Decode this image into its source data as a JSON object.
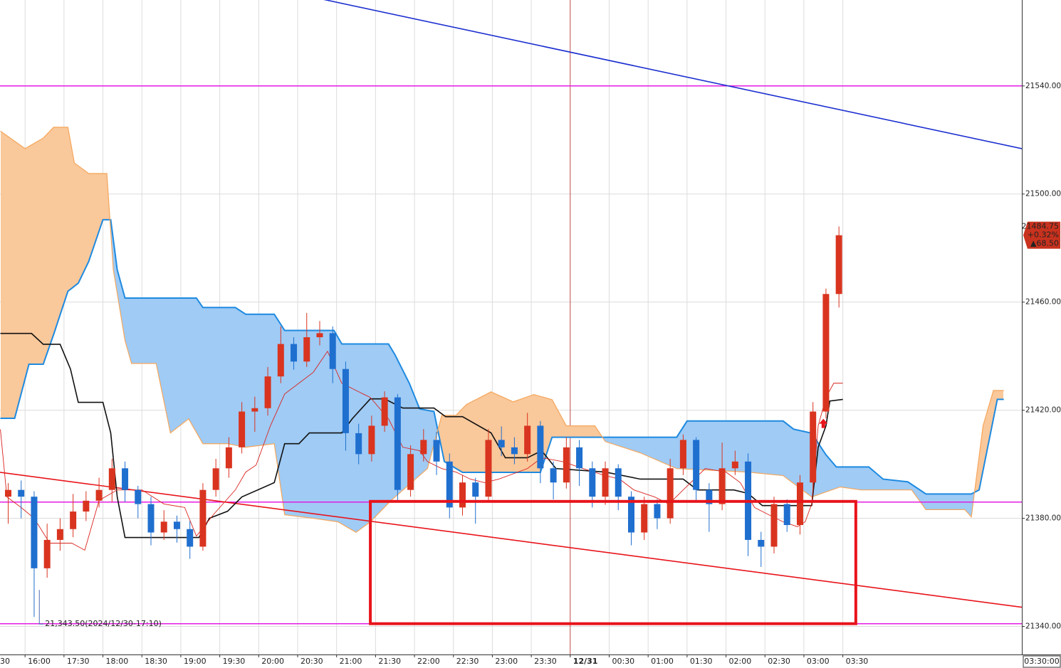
{
  "chart_data": {
    "type": "candlestick",
    "x": [
      -2,
      -1,
      0,
      1,
      2,
      3,
      4,
      5,
      6,
      7,
      8,
      9,
      10,
      11,
      12,
      13,
      14,
      15,
      16,
      17,
      18,
      19,
      20,
      21,
      22,
      23,
      24,
      25,
      26,
      27,
      28,
      29,
      30,
      31,
      32,
      33,
      34,
      35,
      36,
      37,
      38,
      39,
      40,
      41,
      42,
      43,
      44,
      45,
      46,
      47,
      48,
      49,
      50,
      51,
      52,
      53,
      54,
      55,
      56,
      57,
      58,
      59,
      60,
      61,
      62
    ],
    "open": [
      21388,
      21390.5,
      21388,
      21361.5,
      21372,
      21376,
      21382.5,
      21386.5,
      21390.5,
      21398.5,
      21390.5,
      21385.25,
      21374.75,
      21378.75,
      21376,
      21369.5,
      21390.5,
      21398.5,
      21406.25,
      21419.5,
      21420.75,
      21432.5,
      21444.5,
      21438,
      21447,
      21448.5,
      21435.25,
      21411.5,
      21403.75,
      21414.25,
      21424.75,
      21390.5,
      21403.75,
      21409,
      21401,
      21384,
      21393.25,
      21388,
      21409,
      21406.25,
      21403.75,
      21414.25,
      21398.5,
      21393.25,
      21406.25,
      21398.5,
      21388,
      21398.5,
      21388,
      21374.75,
      21385.25,
      21380,
      21398.5,
      21409,
      21390.5,
      21385.25,
      21398.5,
      21401,
      21372,
      21369.5,
      21385.25,
      21377.5,
      21393.25,
      21419.5,
      21463
    ],
    "high": [
      21393,
      21394,
      21390,
      21378,
      21380,
      21389,
      21390,
      21395,
      21402,
      21401,
      21392,
      21388,
      21383,
      21381,
      21379,
      21393,
      21402,
      21410,
      21423,
      21425,
      21436,
      21451,
      21447,
      21456,
      21453,
      21451,
      21438,
      21415,
      21418,
      21427,
      21426,
      21407,
      21413,
      21412,
      21404,
      21396,
      21395,
      21413,
      21414,
      21410,
      21419,
      21416,
      21401,
      21410,
      21409,
      21401,
      21401,
      21400,
      21390,
      21388,
      21387,
      21402,
      21411,
      21410,
      21393,
      21408,
      21405,
      21404,
      21375,
      21388,
      21387,
      21396,
      21423,
      21465,
      21488
    ],
    "low": [
      21378,
      21380,
      21343.5,
      21358,
      21368,
      21373,
      21379,
      21384,
      21386,
      21386,
      21380,
      21370,
      21372,
      21371,
      21365,
      21368,
      21388,
      21395,
      21404,
      21412,
      21418,
      21430,
      21435,
      21436,
      21444,
      21430,
      21405,
      21400,
      21401,
      21412,
      21386,
      21388,
      21401,
      21396,
      21380,
      21381,
      21378,
      21386,
      21403,
      21400,
      21401,
      21393,
      21387,
      21391,
      21392,
      21384,
      21385,
      21383,
      21370,
      21372,
      21376,
      21378,
      21396,
      21386,
      21375,
      21383,
      21396,
      21366,
      21362,
      21367,
      21375,
      21374,
      21390,
      21417,
      21458
    ],
    "close": [
      21390.5,
      21388,
      21361.5,
      21372,
      21376,
      21382.5,
      21386.5,
      21390.5,
      21398.5,
      21390.5,
      21385.25,
      21374.75,
      21378.75,
      21376,
      21369.5,
      21390.5,
      21398.5,
      21406.25,
      21419.5,
      21420.75,
      21432.5,
      21444.5,
      21438,
      21447,
      21448.5,
      21435.25,
      21411.5,
      21403.75,
      21414.25,
      21424.75,
      21390.5,
      21403.75,
      21409,
      21401,
      21384,
      21393.25,
      21388,
      21409,
      21406.25,
      21403.75,
      21414.25,
      21398.5,
      21393.25,
      21406.25,
      21398.5,
      21388,
      21398.5,
      21388,
      21374.75,
      21385.25,
      21380,
      21398.5,
      21409,
      21390.5,
      21385.25,
      21398.5,
      21401,
      21372,
      21369.5,
      21385.25,
      21377.5,
      21393.25,
      21419.5,
      21463,
      21484.75
    ],
    "up_color": "#d9341f",
    "down_color": "#1f6fcf",
    "xlim": [
      -2.63,
      76.09
    ],
    "ylim": [
      21329.6,
      21571.8
    ],
    "xticks": [
      {
        "value": -3.7,
        "label": "30"
      },
      {
        "value": -0.7,
        "label": "16:00"
      },
      {
        "value": 2.3,
        "label": "17:30"
      },
      {
        "value": 5.3,
        "label": "18:00"
      },
      {
        "value": 8.3,
        "label": "18:30"
      },
      {
        "value": 11.3,
        "label": "19:00"
      },
      {
        "value": 14.3,
        "label": "19:30"
      },
      {
        "value": 17.3,
        "label": "20:00"
      },
      {
        "value": 20.3,
        "label": "20:30"
      },
      {
        "value": 23.3,
        "label": "21:00"
      },
      {
        "value": 26.3,
        "label": "21:30"
      },
      {
        "value": 29.3,
        "label": "22:00"
      },
      {
        "value": 32.3,
        "label": "22:30"
      },
      {
        "value": 35.3,
        "label": "23:00"
      },
      {
        "value": 38.3,
        "label": "23:30"
      },
      {
        "value": 41.3,
        "label": "12/31"
      },
      {
        "value": 44.3,
        "label": "00:30"
      },
      {
        "value": 47.3,
        "label": "01:00"
      },
      {
        "value": 50.3,
        "label": "01:30"
      },
      {
        "value": 53.3,
        "label": "02:00"
      },
      {
        "value": 56.3,
        "label": "02:30"
      },
      {
        "value": 59.3,
        "label": "03:00"
      },
      {
        "value": 62.3,
        "label": "03:30"
      }
    ],
    "yticks": [
      {
        "value": 21340,
        "label": "21340.00"
      },
      {
        "value": 21380,
        "label": "21380.00"
      },
      {
        "value": 21420,
        "label": "21420.00"
      },
      {
        "value": 21460,
        "label": "21460.00"
      },
      {
        "value": 21500,
        "label": "21500.00"
      },
      {
        "value": 21540,
        "label": "21540.00"
      }
    ],
    "grid": true,
    "date_divider": 41.3,
    "date_divider_color": "#b02020",
    "cloud": {
      "span_a": {
        "color": "#1e8ae0",
        "fill": "#9fcbf5",
        "x": [
          -2.6,
          -1.5,
          -0.4,
          0.7,
          1.5,
          2.6,
          3.4,
          4.2,
          5.3,
          5.9,
          6.4,
          7.0,
          12.5,
          13,
          15.5,
          16.3,
          18.5,
          19.3,
          23.1,
          23.7,
          27.3,
          27.8,
          28.9,
          29.7,
          30.8,
          31.6,
          33,
          39,
          39.9,
          49.5,
          50.3,
          57.7,
          58.5,
          59.9,
          61,
          61.8,
          64.3,
          65.4,
          67.3,
          68.7,
          72.2,
          72.8,
          74.2,
          74.7
        ],
        "values": [
          21417,
          21417,
          21437,
          21437,
          21448,
          21464,
          21467,
          21475,
          21490.5,
          21490.5,
          21472,
          21461.5,
          21461.5,
          21458,
          21458,
          21455.5,
          21455.5,
          21449.5,
          21449.5,
          21444.5,
          21444.5,
          21440.5,
          21430,
          21420.5,
          21419.5,
          21401,
          21397,
          21397,
          21410,
          21410,
          21416,
          21416,
          21413,
          21411.5,
          21403.5,
          21399,
          21399,
          21394.5,
          21393.5,
          21389,
          21389,
          21390.5,
          21424,
          21424
        ]
      },
      "span_b": {
        "color": "#f5a65b",
        "fill": "#f9c89b",
        "x": [
          -2.6,
          -0.7,
          0.7,
          1.5,
          2.6,
          3.1,
          4.2,
          5.6,
          6.1,
          7.0,
          7.5,
          9.4,
          10.5,
          11.9,
          13.0,
          14.9,
          16.3,
          18.5,
          19.3,
          21.5,
          23.4,
          24.8,
          25.9,
          27.5,
          30.3,
          31.4,
          32.5,
          33.3,
          35.2,
          36.9,
          38.5,
          39.9,
          41.0,
          43.2,
          44.0,
          46.7,
          49.5,
          55.0,
          57.7,
          59.9,
          62.1,
          63.7,
          67.6,
          68.7,
          71.7,
          72.2,
          73.1,
          73.9,
          74.7
        ],
        "values": [
          21523.3,
          21516.8,
          21520.7,
          21524.7,
          21524.7,
          21511.5,
          21507.6,
          21507.6,
          21472,
          21445.8,
          21437.3,
          21437.3,
          21411.6,
          21416.8,
          21407.6,
          21407.6,
          21406.3,
          21407.6,
          21381.3,
          21380,
          21378.7,
          21374.8,
          21378.7,
          21386.6,
          21398.4,
          21418.1,
          21418.1,
          21422.1,
          21426.8,
          21423.1,
          21425.8,
          21423.9,
          21414.2,
          21414.2,
          21408.4,
          21404.2,
          21398.4,
          21397.1,
          21395.8,
          21387.9,
          21391.6,
          21390.5,
          21390.5,
          21383.2,
          21383.2,
          21380.5,
          21414.2,
          21427.3,
          21427.3
        ]
      }
    },
    "overlays": [
      {
        "color": "#111111",
        "width": 1.6,
        "x": [
          -2.6,
          -0.2,
          0.7,
          2.0,
          2.8,
          3.4,
          5.3,
          5.9,
          6.4,
          7.0,
          12.7,
          13.5,
          14.9,
          16.0,
          18.5,
          19.3,
          20.4,
          21.2,
          23.7,
          24.5,
          25.9,
          27.0,
          28.4,
          30.8,
          31.7,
          33.0,
          35.2,
          36.3,
          38.0,
          39.1,
          40.2,
          44.0,
          46.7,
          50.0,
          51.1,
          53.9,
          55.0,
          56.1,
          59.9,
          60.4,
          61.0,
          61.3,
          62.3
        ],
        "values": [
          21448.4,
          21448.4,
          21444.4,
          21444.4,
          21435.2,
          21422.9,
          21422.9,
          21411.6,
          21387.9,
          21372.9,
          21372.9,
          21380,
          21382.6,
          21387.9,
          21393.2,
          21407.6,
          21407.6,
          21411.6,
          21411.6,
          21416.8,
          21424.2,
          21424.2,
          21420.8,
          21420.8,
          21417.6,
          21417.6,
          21411.6,
          21402.4,
          21402.4,
          21405,
          21398.4,
          21397.1,
          21394.5,
          21394.5,
          21390.5,
          21390.5,
          21389.2,
          21384.7,
          21384.7,
          21406.3,
          21414.2,
          21423.4,
          21424
        ]
      },
      {
        "color": "#d9241f",
        "width": 0.9,
        "x": [
          -2.6,
          -2.1,
          -1.0,
          0,
          1.2,
          2.9,
          3.9,
          5.0,
          6.4,
          8.3,
          10.0,
          11.6,
          12.5,
          13.8,
          15.5,
          16.3,
          17.1,
          18.2,
          19.3,
          20.4,
          21.5,
          22.6,
          23.7,
          24.8,
          25.9,
          27.3,
          28.4,
          29.7,
          30.3,
          31.4,
          32.5,
          33.6,
          34.7,
          35.8,
          38.0,
          39.1,
          40.7,
          42.3,
          44.0,
          45.1,
          46.2,
          47.8,
          48.9,
          50.0,
          51.7,
          53.3,
          54.4,
          55.5,
          56.6,
          57.7,
          58.8,
          59.4,
          59.9,
          60.4,
          61.0,
          61.6,
          62.3
        ],
        "values": [
          21412.9,
          21387.9,
          21384,
          21380,
          21370.8,
          21370.8,
          21368.2,
          21386.6,
          21390.5,
          21390.5,
          21385.3,
          21384,
          21373.4,
          21381.3,
          21390.5,
          21397.1,
          21399.7,
          21414.2,
          21426,
          21430,
          21434,
          21441.8,
          21430,
          21427.3,
          21424.7,
          21416.8,
          21406.3,
          21405,
          21401,
          21398.4,
          21397.1,
          21394.5,
          21393.2,
          21394.5,
          21398.4,
          21402.4,
          21401,
          21398.4,
          21395.8,
          21394.5,
          21390.5,
          21387.9,
          21385.3,
          21390.5,
          21398.4,
          21397.1,
          21393.2,
          21384,
          21381.3,
          21378.7,
          21376.9,
          21378.7,
          21385.3,
          21414.2,
          21424.7,
          21430,
          21430
        ]
      }
    ],
    "hlines": [
      {
        "value": 21540,
        "color": "#e31ce3"
      },
      {
        "value": 21386,
        "color": "#e31ce3"
      },
      {
        "value": 21341,
        "color": "#e31ce3"
      }
    ],
    "trendlines": [
      {
        "color": "#1c2fd0",
        "x": [
          22.3,
          76.09
        ],
        "values": [
          21572,
          21516.8
        ]
      },
      {
        "color": "#e8141b",
        "x": [
          -2.63,
          76.09
        ],
        "values": [
          21397,
          21347.1
        ]
      }
    ],
    "box": {
      "x": [
        25.9,
        63.3
      ],
      "y": [
        21341,
        21386.25
      ],
      "color": "#e8141b"
    },
    "signals": [
      {
        "x": 60.8,
        "y": 21415,
        "color": "#e8141b"
      }
    ],
    "low_annotation": {
      "x": 0.4,
      "y": 21343.5,
      "text": "21,343.50(2024/12/30-17:10)"
    },
    "last_price": {
      "value": 21484.75,
      "change_pct": "+0.32%",
      "change": "▲68.50",
      "color": "#c8321e"
    },
    "cursor_time_label": "03:30:00"
  }
}
